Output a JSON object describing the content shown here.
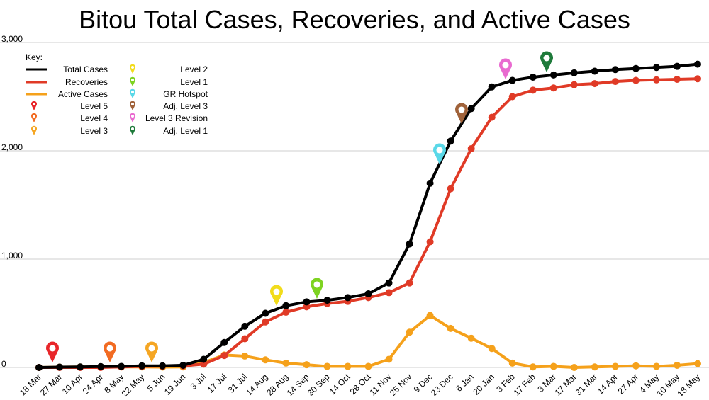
{
  "chart_data": {
    "type": "line",
    "title": "Bitou Total Cases, Recoveries, and Active Cases",
    "legend_title": "Key:",
    "categories": [
      "18 Mar",
      "27 Mar",
      "10 Apr",
      "24 Apr",
      "8 May",
      "22 May",
      "5 Jun",
      "19 Jun",
      "3 Jul",
      "17 Jul",
      "31 Jul",
      "14 Aug",
      "28 Aug",
      "14 Sep",
      "30 Sep",
      "14 Oct",
      "28 Oct",
      "11 Nov",
      "25 Nov",
      "9 Dec",
      "23 Dec",
      "6 Jan",
      "20 Jan",
      "3 Feb",
      "17 Feb",
      "3 Mar",
      "17 Mar",
      "31 Mar",
      "14 Apr",
      "27 Apr",
      "4 May",
      "10 May",
      "18 May"
    ],
    "series": [
      {
        "name": "Total Cases",
        "color": "#000000",
        "values": [
          0,
          3,
          5,
          8,
          10,
          15,
          15,
          20,
          75,
          230,
          380,
          500,
          570,
          605,
          620,
          645,
          680,
          780,
          1140,
          1700,
          2090,
          2390,
          2590,
          2650,
          2680,
          2700,
          2720,
          2735,
          2750,
          2760,
          2770,
          2780,
          2800
        ]
      },
      {
        "name": "Recoveries",
        "color": "#e03a26",
        "values": [
          0,
          0,
          0,
          0,
          5,
          10,
          12,
          15,
          30,
          110,
          265,
          420,
          510,
          560,
          590,
          610,
          645,
          690,
          780,
          1160,
          1650,
          2020,
          2310,
          2500,
          2560,
          2580,
          2610,
          2620,
          2640,
          2650,
          2655,
          2660,
          2665
        ]
      },
      {
        "name": "Active Cases",
        "color": "#f5a11b",
        "values": [
          0,
          3,
          5,
          5,
          5,
          5,
          3,
          5,
          45,
          115,
          105,
          70,
          40,
          25,
          10,
          10,
          10,
          75,
          325,
          480,
          360,
          270,
          175,
          40,
          5,
          10,
          0,
          5,
          10,
          15,
          10,
          20,
          35
        ]
      }
    ],
    "markers": [
      {
        "name": "Level 5",
        "color": "#e8262a"
      },
      {
        "name": "Level 4",
        "color": "#f26b22"
      },
      {
        "name": "Level 3",
        "color": "#f5a623"
      },
      {
        "name": "Level 2",
        "color": "#f2dc1b"
      },
      {
        "name": "Level 1",
        "color": "#7ed321"
      },
      {
        "name": "GR Hotspot",
        "color": "#5ad8e8"
      },
      {
        "name": "Adj. Level 3",
        "color": "#a0623a"
      },
      {
        "name": "Level 3 Revision",
        "color": "#e96bd0"
      },
      {
        "name": "Adj. Level 1",
        "color": "#1e7a3a"
      }
    ],
    "ylim": [
      0,
      3000
    ],
    "yticks": [
      0,
      {
        "value": 1000,
        "label": "1,000"
      },
      {
        "value": 2000,
        "label": "2,000"
      },
      {
        "value": 3000,
        "label": "3,000"
      }
    ],
    "grid": true
  }
}
